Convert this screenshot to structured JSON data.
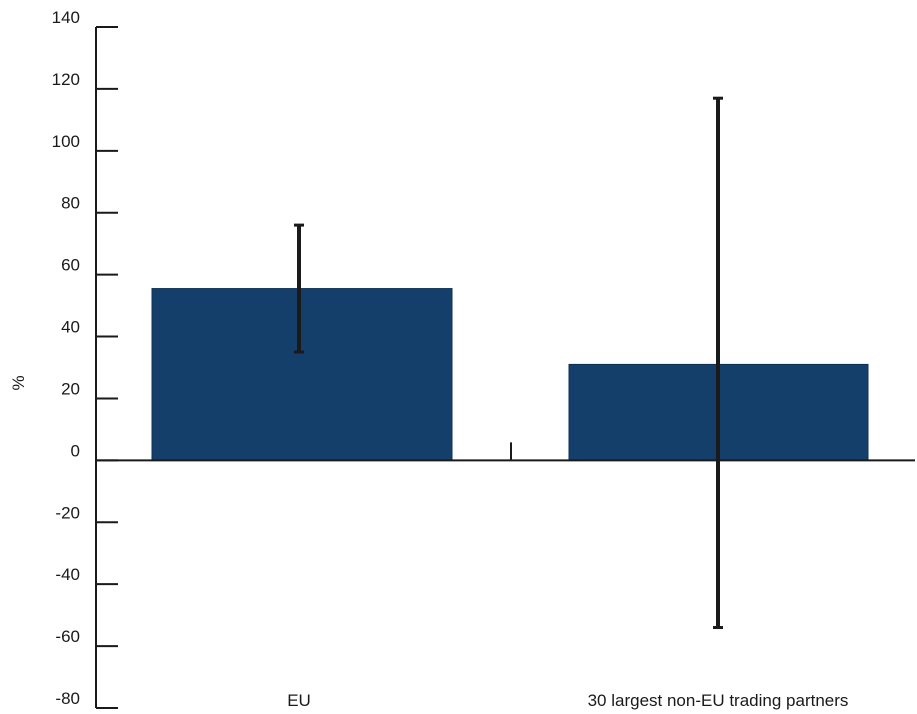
{
  "chart_data": {
    "type": "bar",
    "categories": [
      "EU",
      "30 largest non-EU trading partners"
    ],
    "values": [
      55.5,
      31
    ],
    "error_bars": [
      {
        "low": 35,
        "high": 76
      },
      {
        "low": -54,
        "high": 117
      }
    ],
    "ylabel": "%",
    "ylim": [
      -80,
      140
    ],
    "yticks": [
      140,
      120,
      100,
      80,
      60,
      40,
      20,
      0,
      -20,
      -40,
      -60,
      -80
    ],
    "grid": false,
    "colors": {
      "bar": "#143f6a",
      "error_bar": "#1a1a1a",
      "axis": "#1a1a1a"
    }
  }
}
